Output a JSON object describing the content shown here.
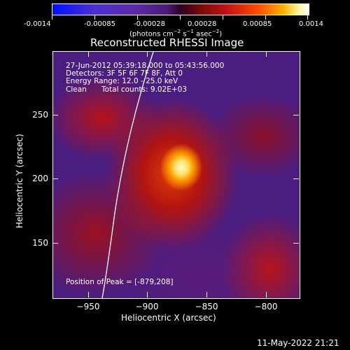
{
  "colorbar": {
    "ticks": [
      "-0.0014",
      "-0.00085",
      "-0.00028",
      "0.00028",
      "0.00085",
      "0.0014"
    ],
    "units_text": "(photons cm⁻² s⁻¹ asec⁻²)",
    "gradient_colors": [
      "#0010ff",
      "#5d2aa5",
      "#300020",
      "#c21212",
      "#ff4a00",
      "#ffb000",
      "#ffffff"
    ]
  },
  "plot": {
    "title": "Reconstructed RHESSI Image"
  },
  "annotation": {
    "time_range": "27-Jun-2012 05:39:18.000 to 05:43:56.000",
    "detectors": "Detectors: 3F 5F 6F 7F 8F, Att 0",
    "energy_range": "Energy Range: 12.0 - 25.0 keV",
    "algorithm": "Clean",
    "total_counts": "Total counts: 9.02E+03",
    "peak_position": "Position of Peak = [-879,208]"
  },
  "axes": {
    "x_label": "Heliocentric X (arcsec)",
    "y_label": "Heliocentric Y (arcsec)",
    "x_ticks": [
      "−950",
      "−900",
      "−850",
      "−800"
    ],
    "y_ticks": [
      "250",
      "200",
      "150"
    ]
  },
  "footer": {
    "timestamp": "11-May-2022 21:21"
  }
}
